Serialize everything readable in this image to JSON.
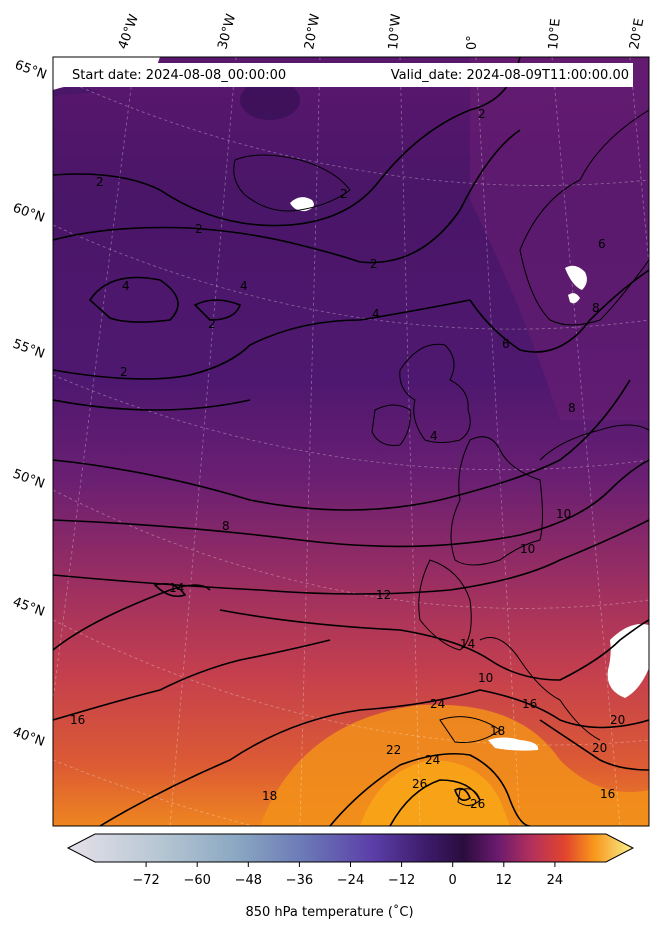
{
  "header": {
    "start_date": "Start date: 2024-08-08_00:00:00",
    "valid_date": "Valid_date: 2024-08-09T11:00:00.00"
  },
  "map": {
    "region": "North Atlantic and Western Europe",
    "lon_labels": [
      "40°W",
      "30°W",
      "20°W",
      "10°W",
      "0°",
      "10°E",
      "20°E"
    ],
    "lat_labels": [
      "65°N",
      "60°N",
      "55°N",
      "50°N",
      "45°N",
      "40°N"
    ],
    "contour_labels": [
      "2",
      "2",
      "2",
      "2",
      "2",
      "2",
      "2",
      "4",
      "4",
      "4",
      "4",
      "6",
      "6",
      "8",
      "8",
      "8",
      "10",
      "10",
      "10",
      "12",
      "14",
      "14",
      "16",
      "16",
      "16",
      "18",
      "18",
      "20",
      "20",
      "22",
      "24",
      "24",
      "26",
      "26"
    ],
    "colormap": "inferno"
  },
  "colorbar": {
    "title": "850 hPa temperature (˚C)",
    "ticks": [
      "−72",
      "−60",
      "−48",
      "−36",
      "−24",
      "−12",
      "0",
      "12",
      "24"
    ],
    "range": [
      -84,
      36
    ]
  }
}
